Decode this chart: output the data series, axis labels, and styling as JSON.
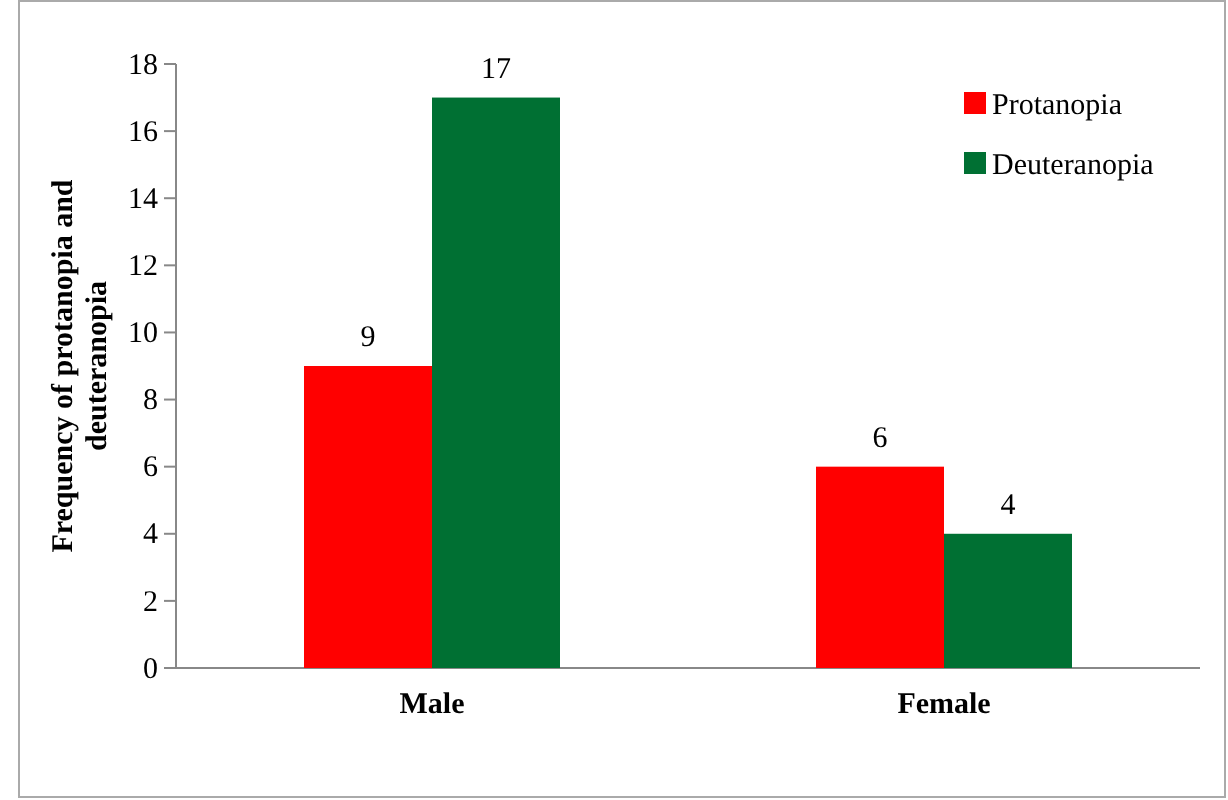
{
  "chart_data": {
    "type": "bar",
    "ylabel": "Frequency of protanopia and deuteranopia",
    "categories": [
      "Male",
      "Female"
    ],
    "series": [
      {
        "name": "Protanopia",
        "color": "#ff0000",
        "values": [
          9,
          6
        ]
      },
      {
        "name": "Deuteranopia",
        "color": "#007033",
        "values": [
          17,
          4
        ]
      }
    ],
    "ylim": [
      0,
      18
    ],
    "yticks": [
      0,
      2,
      4,
      6,
      8,
      10,
      12,
      14,
      16,
      18
    ],
    "data_labels": true,
    "legend": "top right",
    "grid": false
  }
}
